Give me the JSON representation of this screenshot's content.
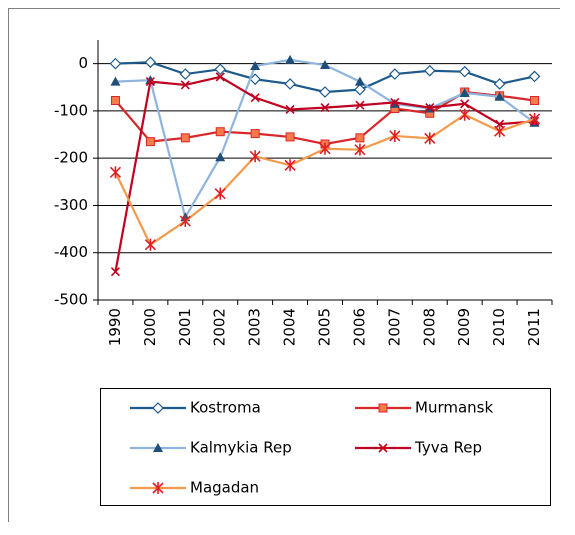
{
  "chart_data": {
    "type": "line",
    "categories": [
      "1990",
      "2000",
      "2001",
      "2002",
      "2003",
      "2004",
      "2005",
      "2006",
      "2007",
      "2008",
      "2009",
      "2010",
      "2011"
    ],
    "ylim": [
      -500,
      50
    ],
    "yticks": [
      -500,
      -400,
      -300,
      -200,
      -100,
      0
    ],
    "grid": true,
    "series": [
      {
        "name": "Kostroma",
        "color": "#1f5a8c",
        "marker": "diamond",
        "marker_color": "#ffffff",
        "values": [
          0,
          3,
          -22,
          -12,
          -33,
          -43,
          -60,
          -55,
          -22,
          -15,
          -17,
          -43,
          -27
        ]
      },
      {
        "name": "Murmansk",
        "color": "#d9262b",
        "marker": "square",
        "marker_color": "#f47c4a",
        "values": [
          -78,
          -165,
          -157,
          -144,
          -148,
          -155,
          -170,
          -157,
          -95,
          -105,
          -60,
          -68,
          -78
        ]
      },
      {
        "name": "Kalmykia Rep",
        "color": "#8fb4dd",
        "marker": "triangle",
        "marker_color": "#1f4e79",
        "values": [
          -38,
          -35,
          -325,
          -198,
          -5,
          8,
          -3,
          -38,
          -85,
          -95,
          -62,
          -70,
          -125
        ]
      },
      {
        "name": "Tyva Rep",
        "color": "#c00020",
        "marker": "x",
        "marker_color": "#c00020",
        "values": [
          -440,
          -38,
          -45,
          -28,
          -72,
          -97,
          -93,
          -88,
          -82,
          -93,
          -85,
          -128,
          -122
        ]
      },
      {
        "name": "Magadan",
        "color": "#f39a4d",
        "marker": "star",
        "marker_color": "#e01e25",
        "values": [
          -230,
          -383,
          -333,
          -275,
          -196,
          -215,
          -180,
          -182,
          -153,
          -158,
          -108,
          -143,
          -117
        ]
      }
    ]
  }
}
